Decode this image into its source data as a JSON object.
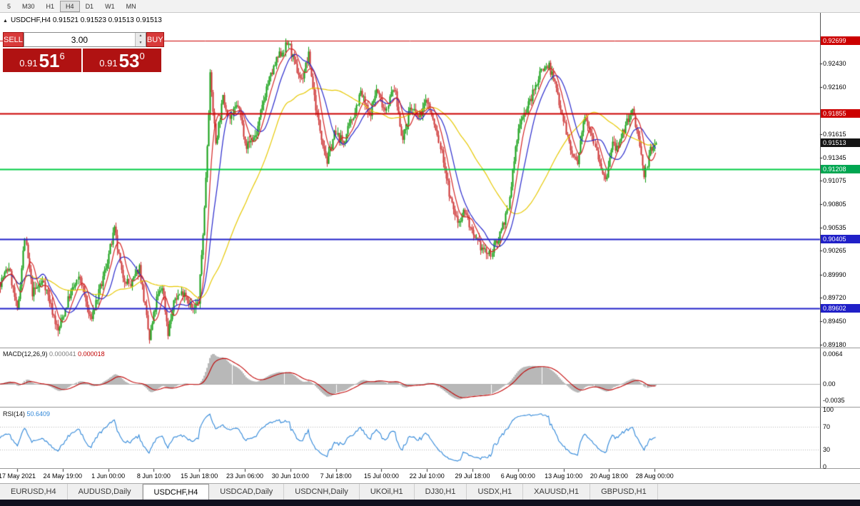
{
  "colors": {
    "candle_up": "#0f9d0f",
    "candle_down": "#cc2f2f",
    "ma_fast": "#d42424",
    "ma_mid": "#2929cc",
    "ma_slow": "#e6c800",
    "macd_hist": "#b8b8b8",
    "macd_signal": "#c00000",
    "rsi_line": "#2e86d8",
    "label_red": "#cc0000",
    "label_green": "#00a651",
    "label_blue": "#2020c8",
    "label_black": "#141414"
  },
  "toolbar": {
    "active": "H4",
    "timeframes": [
      "5",
      "M30",
      "H1",
      "H4",
      "D1",
      "W1",
      "MN"
    ]
  },
  "chart_header": {
    "collapse_icon": "▲",
    "title": "USDCHF,H4  0.91521 0.91523 0.91513 0.91513"
  },
  "trade_panel": {
    "sell_label": "SELL",
    "buy_label": "BUY",
    "volume": "3.00",
    "spin_up_icon": "▲",
    "spin_down_icon": "▼",
    "sell_price": {
      "prefix": "0.91",
      "big": "51",
      "sup": "6"
    },
    "buy_price": {
      "prefix": "0.91",
      "big": "53",
      "sup": "0"
    }
  },
  "price_axis": {
    "ticks": [
      "0.92430",
      "0.92160",
      "0.91615",
      "0.91345",
      "0.91075",
      "0.90805",
      "0.90535",
      "0.90265",
      "0.89990",
      "0.89720",
      "0.89450",
      "0.89180"
    ],
    "highlights": [
      {
        "label": "0.92699",
        "bg": "red"
      },
      {
        "label": "0.91855",
        "bg": "red"
      },
      {
        "label": "0.91513",
        "bg": "black"
      },
      {
        "label": "0.91208",
        "bg": "green"
      },
      {
        "label": "0.90405",
        "bg": "blue"
      },
      {
        "label": "0.89602",
        "bg": "blue"
      }
    ]
  },
  "indicators": {
    "macd": {
      "name": "MACD(12,26,9)",
      "value_main": "0.000041",
      "value_signal": "0.000018",
      "axis_labels": [
        {
          "label": "0.0064",
          "value": 0.0064
        },
        {
          "label": "0.00",
          "value": 0
        },
        {
          "label": "-0.0035",
          "value": -0.0035
        }
      ]
    },
    "rsi": {
      "name": "RSI(14)",
      "value": "50.6409",
      "levels": [
        70,
        30
      ],
      "axis_labels": [
        {
          "label": "100",
          "value": 100
        },
        {
          "label": "70",
          "value": 70
        },
        {
          "label": "30",
          "value": 30
        },
        {
          "label": "0",
          "value": 0
        }
      ]
    }
  },
  "time_axis": {
    "labels": [
      "17 May 2021",
      "24 May 19:00",
      "1 Jun 00:00",
      "8 Jun 10:00",
      "15 Jun 18:00",
      "23 Jun 06:00",
      "30 Jun 10:00",
      "7 Jul 18:00",
      "15 Jul 00:00",
      "22 Jul 10:00",
      "29 Jul 18:00",
      "6 Aug 00:00",
      "13 Aug 10:00",
      "20 Aug 18:00",
      "28 Aug 00:00"
    ]
  },
  "tabs": {
    "active": "USDCHF,H4",
    "items": [
      "EURUSD,H4",
      "AUDUSD,Daily",
      "USDCHF,H4",
      "USDCAD,Daily",
      "USDCNH,Daily",
      "UKOil,H1",
      "DJ30,H1",
      "USDX,H1",
      "XAUUSD,H1",
      "GBPUSD,H1"
    ]
  },
  "chart_data": {
    "type": "candlestick",
    "symbol": "USDCHF",
    "timeframe": "H4",
    "current_bid": 0.91513,
    "visible_price_range": {
      "top": 0.9302,
      "bottom": 0.8917
    },
    "num_candles": 454,
    "moving_average_periods": {
      "fast": 8,
      "mid": 16,
      "slow": 55
    },
    "horizontal_lines": [
      {
        "price": 0.92699,
        "color": "#cc0000",
        "width": 1
      },
      {
        "price": 0.91855,
        "color": "#cc0000",
        "width": 2
      },
      {
        "price": 0.91208,
        "color": "#00cc44",
        "width": 2
      },
      {
        "price": 0.90405,
        "color": "#2020c8",
        "width": 2
      },
      {
        "price": 0.89602,
        "color": "#2020c8",
        "width": 2
      }
    ],
    "price_path_anchors": [
      [
        0,
        0.899
      ],
      [
        6,
        0.9008
      ],
      [
        12,
        0.8955
      ],
      [
        17,
        0.9042
      ],
      [
        22,
        0.8978
      ],
      [
        30,
        0.8992
      ],
      [
        40,
        0.8933
      ],
      [
        48,
        0.8975
      ],
      [
        55,
        0.8996
      ],
      [
        62,
        0.8946
      ],
      [
        70,
        0.8988
      ],
      [
        79,
        0.905
      ],
      [
        84,
        0.9
      ],
      [
        90,
        0.8986
      ],
      [
        96,
        0.9008
      ],
      [
        103,
        0.8923
      ],
      [
        108,
        0.897
      ],
      [
        112,
        0.8986
      ],
      [
        116,
        0.8932
      ],
      [
        121,
        0.8972
      ],
      [
        127,
        0.898
      ],
      [
        133,
        0.8956
      ],
      [
        137,
        0.8968
      ],
      [
        141,
        0.9075
      ],
      [
        145,
        0.9228
      ],
      [
        149,
        0.9152
      ],
      [
        154,
        0.9203
      ],
      [
        159,
        0.918
      ],
      [
        164,
        0.9196
      ],
      [
        170,
        0.9148
      ],
      [
        177,
        0.9162
      ],
      [
        184,
        0.9216
      ],
      [
        192,
        0.925
      ],
      [
        199,
        0.9268
      ],
      [
        203,
        0.9243
      ],
      [
        208,
        0.9224
      ],
      [
        213,
        0.9252
      ],
      [
        219,
        0.9182
      ],
      [
        226,
        0.913
      ],
      [
        231,
        0.9162
      ],
      [
        237,
        0.9152
      ],
      [
        244,
        0.9184
      ],
      [
        249,
        0.921
      ],
      [
        255,
        0.9182
      ],
      [
        260,
        0.9213
      ],
      [
        266,
        0.919
      ],
      [
        272,
        0.9216
      ],
      [
        278,
        0.9154
      ],
      [
        283,
        0.9193
      ],
      [
        289,
        0.918
      ],
      [
        295,
        0.9202
      ],
      [
        301,
        0.9166
      ],
      [
        306,
        0.9132
      ],
      [
        311,
        0.9084
      ],
      [
        316,
        0.906
      ],
      [
        321,
        0.9074
      ],
      [
        327,
        0.904
      ],
      [
        333,
        0.903
      ],
      [
        338,
        0.9021
      ],
      [
        343,
        0.9037
      ],
      [
        347,
        0.9058
      ],
      [
        351,
        0.9074
      ],
      [
        355,
        0.9132
      ],
      [
        359,
        0.9178
      ],
      [
        364,
        0.9192
      ],
      [
        369,
        0.9212
      ],
      [
        374,
        0.9238
      ],
      [
        379,
        0.9241
      ],
      [
        384,
        0.9214
      ],
      [
        389,
        0.918
      ],
      [
        394,
        0.9143
      ],
      [
        399,
        0.9126
      ],
      [
        404,
        0.9186
      ],
      [
        409,
        0.9162
      ],
      [
        414,
        0.913
      ],
      [
        418,
        0.9105
      ],
      [
        423,
        0.9152
      ],
      [
        427,
        0.9142
      ],
      [
        432,
        0.9174
      ],
      [
        437,
        0.9188
      ],
      [
        441,
        0.9158
      ],
      [
        445,
        0.9113
      ],
      [
        449,
        0.9142
      ],
      [
        453,
        0.91513
      ]
    ]
  }
}
